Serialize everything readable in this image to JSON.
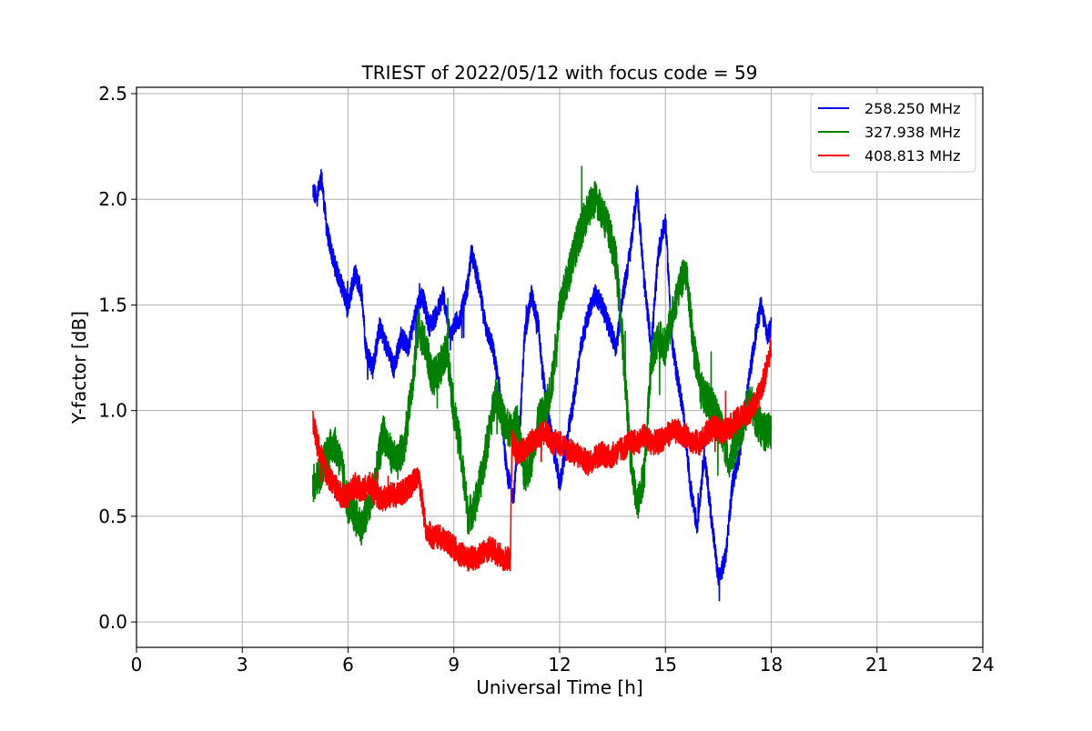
{
  "chart_data": {
    "type": "line",
    "title": "TRIEST of 2022/05/12 with focus code = 59",
    "xlabel": "Universal Time [h]",
    "ylabel": "Y-factor [dB]",
    "xlim": [
      0,
      24
    ],
    "ylim": [
      -0.12,
      2.53
    ],
    "xticks": [
      0,
      3,
      6,
      9,
      12,
      15,
      18,
      21,
      24
    ],
    "xtick_labels": [
      "0",
      "3",
      "6",
      "9",
      "12",
      "15",
      "18",
      "21",
      "24"
    ],
    "yticks": [
      0.0,
      0.5,
      1.0,
      1.5,
      2.0,
      2.5
    ],
    "ytick_labels": [
      "0.0",
      "0.5",
      "1.0",
      "1.5",
      "2.0",
      "2.5"
    ],
    "grid": true,
    "legend_position": "top-right",
    "series": [
      {
        "name": "258.250 MHz",
        "color": "#0000ff",
        "noise": 0.05,
        "x": [
          5.0,
          5.1,
          5.25,
          5.4,
          5.6,
          5.8,
          6.0,
          6.2,
          6.4,
          6.5,
          6.7,
          6.9,
          7.1,
          7.3,
          7.5,
          7.7,
          7.9,
          8.1,
          8.3,
          8.5,
          8.7,
          8.9,
          9.0,
          9.2,
          9.4,
          9.5,
          9.7,
          9.9,
          10.1,
          10.3,
          10.5,
          10.7,
          10.9,
          11.0,
          11.2,
          11.4,
          11.5,
          11.7,
          11.9,
          12.0,
          12.2,
          12.4,
          12.6,
          12.8,
          13.0,
          13.2,
          13.4,
          13.6,
          13.8,
          14.0,
          14.2,
          14.4,
          14.6,
          14.8,
          15.0,
          15.2,
          15.4,
          15.5,
          15.7,
          15.9,
          16.1,
          16.3,
          16.5,
          16.7,
          16.9,
          17.1,
          17.3,
          17.5,
          17.7,
          17.9,
          18.0
        ],
        "y": [
          2.05,
          2.0,
          2.1,
          1.85,
          1.7,
          1.6,
          1.5,
          1.65,
          1.55,
          1.3,
          1.2,
          1.4,
          1.3,
          1.2,
          1.35,
          1.3,
          1.45,
          1.55,
          1.4,
          1.45,
          1.55,
          1.35,
          1.4,
          1.45,
          1.6,
          1.75,
          1.6,
          1.4,
          1.3,
          1.1,
          0.7,
          0.6,
          1.0,
          1.35,
          1.55,
          1.4,
          1.2,
          0.95,
          0.75,
          0.65,
          0.85,
          1.05,
          1.3,
          1.45,
          1.55,
          1.5,
          1.4,
          1.3,
          1.55,
          1.75,
          2.05,
          1.6,
          1.3,
          1.75,
          1.9,
          1.3,
          1.1,
          1.0,
          0.65,
          0.45,
          0.8,
          0.5,
          0.2,
          0.3,
          0.65,
          0.8,
          1.05,
          1.3,
          1.5,
          1.35,
          1.4
        ]
      },
      {
        "name": "327.938 MHz",
        "color": "#008000",
        "noise": 0.09,
        "x": [
          5.0,
          5.2,
          5.4,
          5.6,
          5.8,
          6.0,
          6.2,
          6.4,
          6.6,
          6.8,
          7.0,
          7.2,
          7.4,
          7.6,
          7.8,
          8.0,
          8.2,
          8.4,
          8.6,
          8.8,
          9.0,
          9.2,
          9.4,
          9.6,
          9.8,
          10.0,
          10.2,
          10.4,
          10.6,
          10.8,
          11.0,
          11.2,
          11.4,
          11.6,
          11.8,
          12.0,
          12.2,
          12.4,
          12.6,
          12.8,
          13.0,
          13.2,
          13.4,
          13.6,
          13.8,
          14.0,
          14.2,
          14.4,
          14.6,
          14.8,
          15.0,
          15.2,
          15.4,
          15.6,
          15.8,
          16.0,
          16.2,
          16.4,
          16.6,
          16.8,
          17.0,
          17.2,
          17.4,
          17.6,
          17.8,
          18.0
        ],
        "y": [
          0.65,
          0.7,
          0.8,
          0.85,
          0.75,
          0.55,
          0.5,
          0.45,
          0.55,
          0.7,
          0.9,
          0.8,
          0.75,
          0.85,
          1.1,
          1.4,
          1.3,
          1.15,
          1.2,
          1.3,
          1.0,
          0.8,
          0.5,
          0.55,
          0.7,
          0.9,
          1.1,
          0.95,
          0.9,
          0.95,
          0.7,
          0.75,
          0.95,
          1.0,
          1.15,
          1.5,
          1.6,
          1.75,
          1.85,
          1.95,
          2.0,
          1.95,
          1.85,
          1.7,
          1.3,
          0.8,
          0.55,
          0.7,
          1.25,
          1.35,
          1.3,
          1.45,
          1.6,
          1.65,
          1.3,
          1.1,
          1.05,
          1.0,
          0.9,
          0.75,
          0.85,
          0.95,
          1.05,
          0.95,
          0.9,
          0.9
        ]
      },
      {
        "name": "408.813 MHz",
        "color": "#ff0000",
        "noise": 0.06,
        "x": [
          5.0,
          5.2,
          5.4,
          5.6,
          5.8,
          6.0,
          6.2,
          6.4,
          6.6,
          6.8,
          7.0,
          7.2,
          7.4,
          7.6,
          7.8,
          8.0,
          8.2,
          8.4,
          8.6,
          8.8,
          9.0,
          9.2,
          9.4,
          9.6,
          9.8,
          10.0,
          10.2,
          10.4,
          10.6,
          10.65,
          10.8,
          11.0,
          11.2,
          11.4,
          11.6,
          11.8,
          12.0,
          12.2,
          12.4,
          12.6,
          12.8,
          13.0,
          13.2,
          13.4,
          13.6,
          13.8,
          14.0,
          14.2,
          14.4,
          14.6,
          14.8,
          15.0,
          15.2,
          15.4,
          15.6,
          15.8,
          16.0,
          16.2,
          16.4,
          16.6,
          16.8,
          17.0,
          17.2,
          17.4,
          17.6,
          17.8,
          18.0
        ],
        "y": [
          0.95,
          0.8,
          0.7,
          0.65,
          0.6,
          0.6,
          0.65,
          0.62,
          0.65,
          0.6,
          0.58,
          0.6,
          0.6,
          0.62,
          0.65,
          0.7,
          0.45,
          0.4,
          0.4,
          0.38,
          0.35,
          0.32,
          0.3,
          0.3,
          0.32,
          0.35,
          0.33,
          0.3,
          0.3,
          0.85,
          0.8,
          0.82,
          0.85,
          0.88,
          0.9,
          0.85,
          0.85,
          0.82,
          0.8,
          0.78,
          0.75,
          0.78,
          0.8,
          0.78,
          0.8,
          0.82,
          0.85,
          0.85,
          0.88,
          0.85,
          0.85,
          0.88,
          0.9,
          0.9,
          0.88,
          0.85,
          0.85,
          0.9,
          0.92,
          0.9,
          0.92,
          0.95,
          0.98,
          1.0,
          1.05,
          1.15,
          1.3
        ]
      }
    ]
  }
}
